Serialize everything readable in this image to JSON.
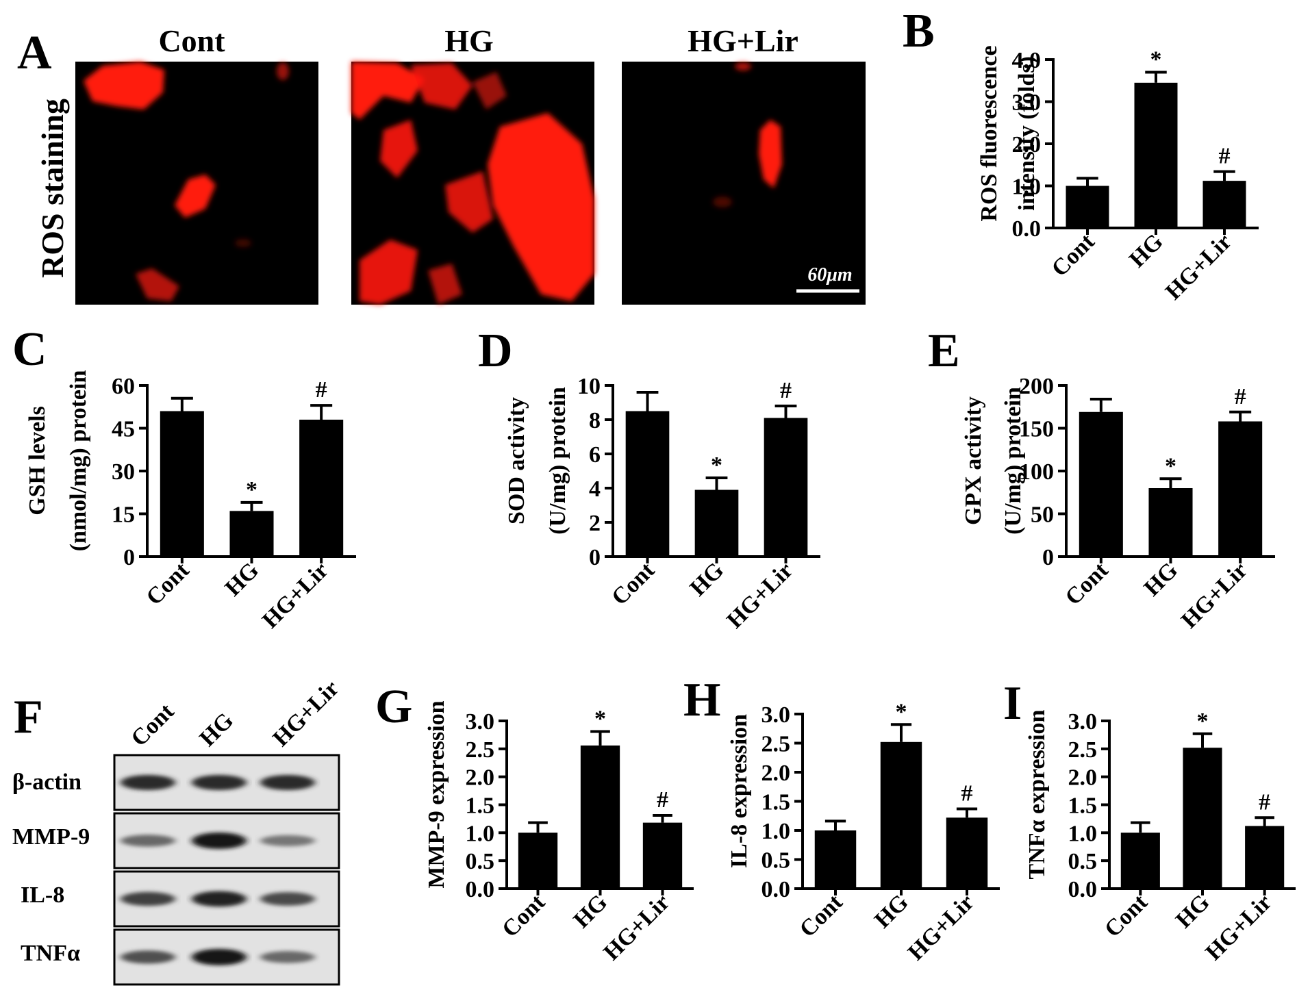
{
  "panel_labels": {
    "A": "A",
    "B": "B",
    "C": "C",
    "D": "D",
    "E": "E",
    "F": "F",
    "G": "G",
    "H": "H",
    "I": "I"
  },
  "panel_a": {
    "titles": [
      "Cont",
      "HG",
      "HG+Lir"
    ],
    "row_label": "ROS staining",
    "scale_bar": "60μm",
    "stain_color": "#ff1a10"
  },
  "western_blot": {
    "lanes": [
      "Cont",
      "HG",
      "HG+Lir"
    ],
    "bands": [
      {
        "label": "β-actin",
        "intensity": [
          0.85,
          0.85,
          0.85
        ]
      },
      {
        "label": "MMP-9",
        "intensity": [
          0.45,
          1.0,
          0.35
        ]
      },
      {
        "label": "IL-8",
        "intensity": [
          0.7,
          0.9,
          0.65
        ]
      },
      {
        "label": "TNFα",
        "intensity": [
          0.6,
          1.0,
          0.45
        ]
      }
    ]
  },
  "chart_data": [
    {
      "id": "B",
      "type": "bar",
      "categories": [
        "Cont",
        "HG",
        "HG+Lir"
      ],
      "values": [
        1.0,
        3.45,
        1.12
      ],
      "errors": [
        0.18,
        0.25,
        0.22
      ],
      "significance": [
        "",
        "*",
        "#"
      ],
      "ylabel": [
        "ROS fluorescence",
        "intensity (folds)"
      ],
      "ylim": [
        0,
        4.0
      ],
      "ticks": [
        "0.0",
        "1.0",
        "2.0",
        "3.0",
        "4.0"
      ],
      "tick_values": [
        0,
        1,
        2,
        3,
        4
      ]
    },
    {
      "id": "C",
      "type": "bar",
      "categories": [
        "Cont",
        "HG",
        "HG+Lir"
      ],
      "values": [
        51,
        16,
        48
      ],
      "errors": [
        4.5,
        3,
        5
      ],
      "significance": [
        "",
        "*",
        "#"
      ],
      "ylabel": [
        "GSH levels",
        "(nmol/mg) protein"
      ],
      "ylim": [
        0,
        60
      ],
      "ticks": [
        "0",
        "15",
        "30",
        "45",
        "60"
      ],
      "tick_values": [
        0,
        15,
        30,
        45,
        60
      ]
    },
    {
      "id": "D",
      "type": "bar",
      "categories": [
        "Cont",
        "HG",
        "HG+Lir"
      ],
      "values": [
        8.5,
        3.9,
        8.1
      ],
      "errors": [
        1.1,
        0.7,
        0.7
      ],
      "significance": [
        "",
        "*",
        "#"
      ],
      "ylabel": [
        "SOD activity",
        "(U/mg) protein"
      ],
      "ylim": [
        0,
        10
      ],
      "ticks": [
        "0",
        "2",
        "4",
        "6",
        "8",
        "10"
      ],
      "tick_values": [
        0,
        2,
        4,
        6,
        8,
        10
      ]
    },
    {
      "id": "E",
      "type": "bar",
      "categories": [
        "Cont",
        "HG",
        "HG+Lir"
      ],
      "values": [
        169,
        80,
        158
      ],
      "errors": [
        15,
        11,
        11
      ],
      "significance": [
        "",
        "*",
        "#"
      ],
      "ylabel": [
        "GPX activity",
        "(U/mg) protein"
      ],
      "ylim": [
        0,
        200
      ],
      "ticks": [
        "0",
        "50",
        "100",
        "150",
        "200"
      ],
      "tick_values": [
        0,
        50,
        100,
        150,
        200
      ]
    },
    {
      "id": "G",
      "type": "bar",
      "categories": [
        "Cont",
        "HG",
        "HG+Lir"
      ],
      "values": [
        1.0,
        2.56,
        1.18
      ],
      "errors": [
        0.18,
        0.25,
        0.13
      ],
      "significance": [
        "",
        "*",
        "#"
      ],
      "ylabel": [
        "MMP-9 expression"
      ],
      "ylim": [
        0,
        3.0
      ],
      "ticks": [
        "0.0",
        "0.5",
        "1.0",
        "1.5",
        "2.0",
        "2.5",
        "3.0"
      ],
      "tick_values": [
        0,
        0.5,
        1,
        1.5,
        2,
        2.5,
        3
      ]
    },
    {
      "id": "H",
      "type": "bar",
      "categories": [
        "Cont",
        "HG",
        "HG+Lir"
      ],
      "values": [
        1.0,
        2.52,
        1.22
      ],
      "errors": [
        0.16,
        0.3,
        0.15
      ],
      "significance": [
        "",
        "*",
        "#"
      ],
      "ylabel": [
        "IL-8 expression"
      ],
      "ylim": [
        0,
        3.0
      ],
      "ticks": [
        "0.0",
        "0.5",
        "1.0",
        "1.5",
        "2.0",
        "2.5",
        "3.0"
      ],
      "tick_values": [
        0,
        0.5,
        1,
        1.5,
        2,
        2.5,
        3
      ]
    },
    {
      "id": "I",
      "type": "bar",
      "categories": [
        "Cont",
        "HG",
        "HG+Lir"
      ],
      "values": [
        1.0,
        2.52,
        1.12
      ],
      "errors": [
        0.18,
        0.25,
        0.15
      ],
      "significance": [
        "",
        "*",
        "#"
      ],
      "ylabel": [
        "TNFα expression"
      ],
      "ylim": [
        0,
        3.0
      ],
      "ticks": [
        "0.0",
        "0.5",
        "1.0",
        "1.5",
        "2.0",
        "2.5",
        "3.0"
      ],
      "tick_values": [
        0,
        0.5,
        1,
        1.5,
        2,
        2.5,
        3
      ]
    }
  ]
}
